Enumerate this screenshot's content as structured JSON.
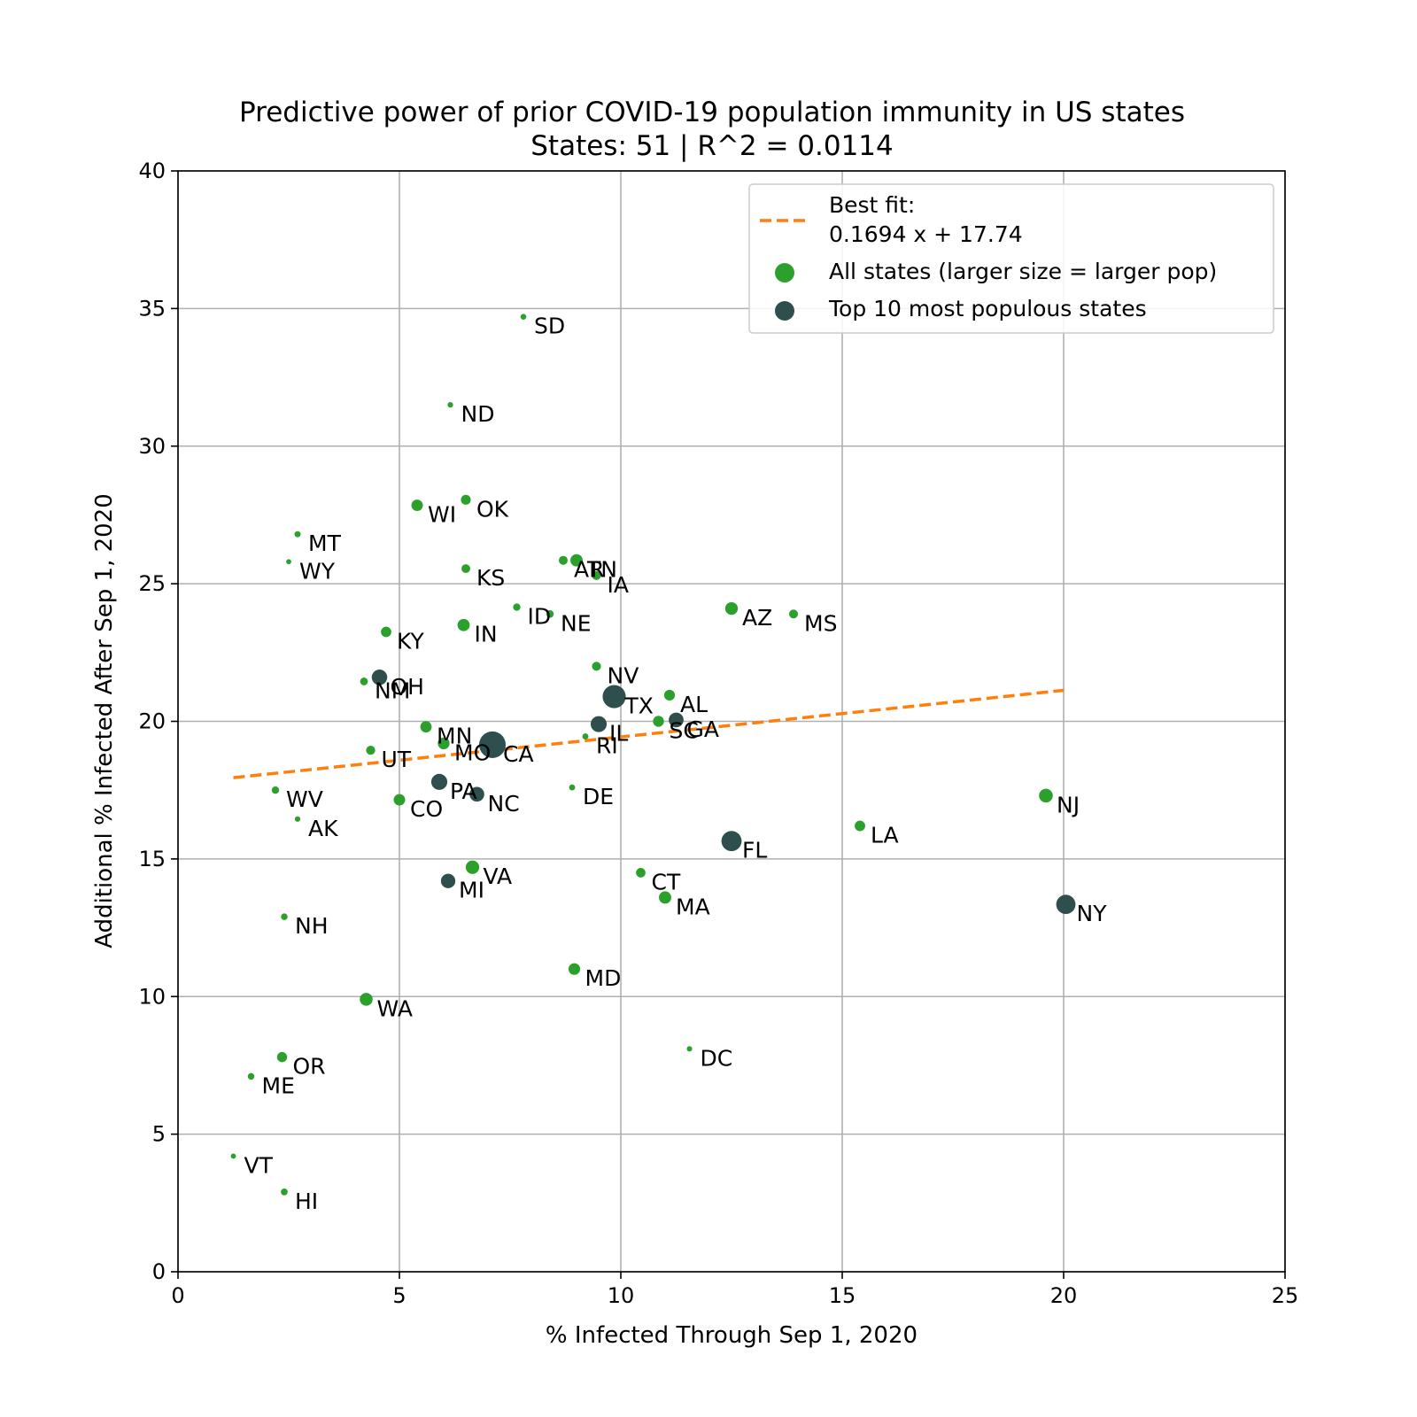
{
  "chart_data": {
    "type": "scatter",
    "title": "Predictive power of prior COVID-19 population immunity in US states",
    "subtitle": "States: 51 | R^2 = 0.0114",
    "xlabel": "% Infected Through Sep 1, 2020",
    "ylabel": "Additional % Infected After Sep 1, 2020",
    "xlim": [
      0,
      25
    ],
    "ylim": [
      0,
      40
    ],
    "xticks": [
      0,
      5,
      10,
      15,
      20,
      25
    ],
    "yticks": [
      0,
      5,
      10,
      15,
      20,
      25,
      30,
      35,
      40
    ],
    "grid": true,
    "legend_position": "top-right",
    "legend": {
      "fit_line_1": "Best fit:",
      "fit_line_2": "0.1694 x + 17.74",
      "all_states": "All states (larger size = larger pop)",
      "top10": "Top 10 most populous states"
    },
    "fit": {
      "slope": 0.1694,
      "intercept": 17.74,
      "x_range": [
        1.25,
        20.0
      ]
    },
    "colors": {
      "all": "#2ca02c",
      "top10": "#2f4f4f",
      "fit": "#ff7f0e",
      "grid": "#b0b0b0"
    },
    "points": [
      {
        "label": "SD",
        "x": 7.8,
        "y": 34.7,
        "top10": false,
        "pop": 0.88
      },
      {
        "label": "ND",
        "x": 6.15,
        "y": 31.5,
        "top10": false,
        "pop": 0.76
      },
      {
        "label": "WI",
        "x": 5.4,
        "y": 27.85,
        "top10": false,
        "pop": 5.8
      },
      {
        "label": "OK",
        "x": 6.5,
        "y": 28.05,
        "top10": false,
        "pop": 3.96
      },
      {
        "label": "MT",
        "x": 2.7,
        "y": 26.8,
        "top10": false,
        "pop": 1.07
      },
      {
        "label": "WY",
        "x": 2.5,
        "y": 25.8,
        "top10": false,
        "pop": 0.58
      },
      {
        "label": "KS",
        "x": 6.5,
        "y": 25.55,
        "top10": false,
        "pop": 2.9
      },
      {
        "label": "AR",
        "x": 8.7,
        "y": 25.85,
        "top10": false,
        "pop": 3.0
      },
      {
        "label": "TN",
        "x": 9.0,
        "y": 25.85,
        "top10": false,
        "pop": 6.8
      },
      {
        "label": "IA",
        "x": 9.45,
        "y": 25.3,
        "top10": false,
        "pop": 3.15
      },
      {
        "label": "ID",
        "x": 7.65,
        "y": 24.15,
        "top10": false,
        "pop": 1.8
      },
      {
        "label": "NE",
        "x": 8.4,
        "y": 23.9,
        "top10": false,
        "pop": 1.93
      },
      {
        "label": "AZ",
        "x": 12.5,
        "y": 24.1,
        "top10": false,
        "pop": 7.3
      },
      {
        "label": "MS",
        "x": 13.9,
        "y": 23.9,
        "top10": false,
        "pop": 2.98
      },
      {
        "label": "KY",
        "x": 4.7,
        "y": 23.25,
        "top10": false,
        "pop": 4.47
      },
      {
        "label": "IN",
        "x": 6.45,
        "y": 23.5,
        "top10": false,
        "pop": 6.73
      },
      {
        "label": "NV",
        "x": 9.45,
        "y": 22.0,
        "top10": false,
        "pop": 3.08
      },
      {
        "label": "OH",
        "x": 4.55,
        "y": 21.6,
        "top10": true,
        "pop": 11.7
      },
      {
        "label": "NM",
        "x": 4.2,
        "y": 21.45,
        "top10": false,
        "pop": 2.1
      },
      {
        "label": "TX",
        "x": 9.85,
        "y": 20.9,
        "top10": true,
        "pop": 29.0
      },
      {
        "label": "AL",
        "x": 11.1,
        "y": 20.95,
        "top10": false,
        "pop": 4.9
      },
      {
        "label": "IL",
        "x": 9.5,
        "y": 19.9,
        "top10": true,
        "pop": 12.7
      },
      {
        "label": "SC",
        "x": 10.85,
        "y": 20.0,
        "top10": false,
        "pop": 5.15
      },
      {
        "label": "GA",
        "x": 11.25,
        "y": 20.05,
        "top10": true,
        "pop": 10.6
      },
      {
        "label": "MN",
        "x": 5.6,
        "y": 19.8,
        "top10": false,
        "pop": 5.6
      },
      {
        "label": "MO",
        "x": 6.0,
        "y": 19.2,
        "top10": false,
        "pop": 6.14
      },
      {
        "label": "CA",
        "x": 7.1,
        "y": 19.15,
        "top10": true,
        "pop": 39.5
      },
      {
        "label": "RI",
        "x": 9.2,
        "y": 19.45,
        "top10": false,
        "pop": 1.06
      },
      {
        "label": "UT",
        "x": 4.35,
        "y": 18.95,
        "top10": false,
        "pop": 3.2
      },
      {
        "label": "WV",
        "x": 2.2,
        "y": 17.5,
        "top10": false,
        "pop": 1.8
      },
      {
        "label": "PA",
        "x": 5.9,
        "y": 17.8,
        "top10": true,
        "pop": 12.8
      },
      {
        "label": "NC",
        "x": 6.75,
        "y": 17.35,
        "top10": true,
        "pop": 10.5
      },
      {
        "label": "DE",
        "x": 8.9,
        "y": 17.6,
        "top10": false,
        "pop": 0.97
      },
      {
        "label": "CO",
        "x": 5.0,
        "y": 17.15,
        "top10": false,
        "pop": 5.76
      },
      {
        "label": "AK",
        "x": 2.7,
        "y": 16.45,
        "top10": false,
        "pop": 0.73
      },
      {
        "label": "NJ",
        "x": 19.6,
        "y": 17.3,
        "top10": false,
        "pop": 8.9
      },
      {
        "label": "LA",
        "x": 15.4,
        "y": 16.2,
        "top10": false,
        "pop": 4.6
      },
      {
        "label": "FL",
        "x": 12.5,
        "y": 15.65,
        "top10": true,
        "pop": 21.5
      },
      {
        "label": "VA",
        "x": 6.65,
        "y": 14.7,
        "top10": false,
        "pop": 8.5
      },
      {
        "label": "MI",
        "x": 6.1,
        "y": 14.2,
        "top10": true,
        "pop": 10.0
      },
      {
        "label": "CT",
        "x": 10.45,
        "y": 14.5,
        "top10": false,
        "pop": 3.56
      },
      {
        "label": "MA",
        "x": 11.0,
        "y": 13.6,
        "top10": false,
        "pop": 6.9
      },
      {
        "label": "NY",
        "x": 20.05,
        "y": 13.35,
        "top10": true,
        "pop": 19.4
      },
      {
        "label": "NH",
        "x": 2.4,
        "y": 12.9,
        "top10": false,
        "pop": 1.36
      },
      {
        "label": "MD",
        "x": 8.95,
        "y": 11.0,
        "top10": false,
        "pop": 6.0
      },
      {
        "label": "WA",
        "x": 4.25,
        "y": 9.9,
        "top10": false,
        "pop": 7.6
      },
      {
        "label": "DC",
        "x": 11.55,
        "y": 8.1,
        "top10": false,
        "pop": 0.7
      },
      {
        "label": "OR",
        "x": 2.35,
        "y": 7.8,
        "top10": false,
        "pop": 4.2
      },
      {
        "label": "ME",
        "x": 1.65,
        "y": 7.1,
        "top10": false,
        "pop": 1.34
      },
      {
        "label": "VT",
        "x": 1.25,
        "y": 4.2,
        "top10": false,
        "pop": 0.62
      },
      {
        "label": "HI",
        "x": 2.4,
        "y": 2.9,
        "top10": false,
        "pop": 1.42
      }
    ]
  }
}
